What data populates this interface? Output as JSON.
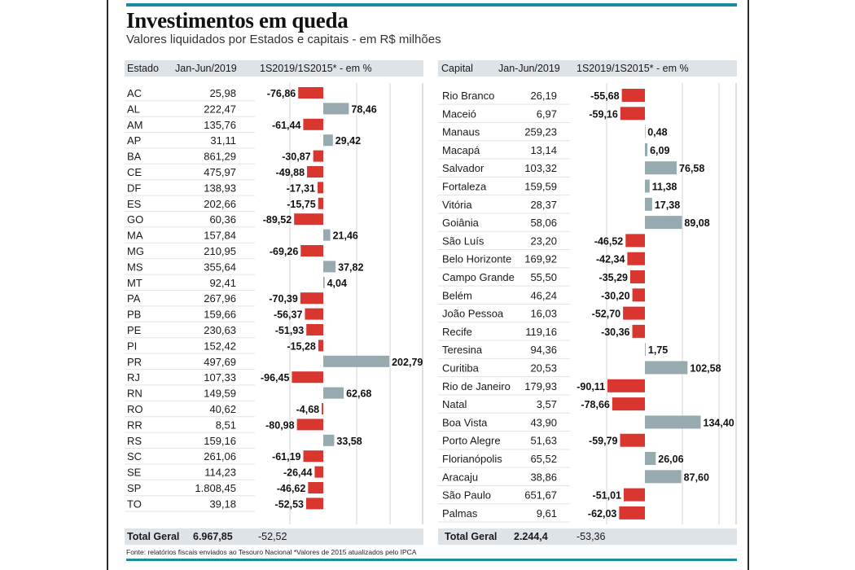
{
  "title": "Investimentos em queda",
  "subtitle": "Valores liquidados por Estados e capitais - em R$ milhões",
  "footer": "Fonte: relatórios fiscais enviados ao Tesouro Nacional *Valores de 2015 atualizados pelo IPCA",
  "colors": {
    "accent": "#1c8aa0",
    "negative": "#d93630",
    "positive": "#97aab0",
    "header_bg": "#dde3e6"
  },
  "chart_data": [
    {
      "type": "bar",
      "orientation": "horizontal",
      "columns": [
        "Estado",
        "Jan-Jun/2019",
        "1S2019/1S2015* - em %"
      ],
      "categories": [
        "AC",
        "AL",
        "AM",
        "AP",
        "BA",
        "CE",
        "DF",
        "ES",
        "GO",
        "MA",
        "MG",
        "MS",
        "MT",
        "PA",
        "PB",
        "PE",
        "PI",
        "PR",
        "RJ",
        "RN",
        "RO",
        "RR",
        "RS",
        "SC",
        "SE",
        "SP",
        "TO"
      ],
      "values_jan_jun_2019": [
        "25,98",
        "222,47",
        "135,76",
        "31,11",
        "861,29",
        "475,97",
        "138,93",
        "202,66",
        "60,36",
        "157,84",
        "210,95",
        "355,64",
        "92,41",
        "267,96",
        "159,66",
        "230,63",
        "152,42",
        "497,69",
        "107,33",
        "149,59",
        "40,62",
        "8,51",
        "159,16",
        "261,06",
        "114,23",
        "1.808,45",
        "39,18"
      ],
      "labels_pct": [
        "-76,86",
        "78,46",
        "-61,44",
        "29,42",
        "-30,87",
        "-49,88",
        "-17,31",
        "-15,75",
        "-89,52",
        "21,46",
        "-69,26",
        "37,82",
        "4,04",
        "-70,39",
        "-56,37",
        "-51,93",
        "-15,28",
        "202,79",
        "-96,45",
        "62,68",
        "-4,68",
        "-80,98",
        "33,58",
        "-61,19",
        "-26,44",
        "-46,62",
        "-52,53"
      ],
      "values": [
        -76.86,
        78.46,
        -61.44,
        29.42,
        -30.87,
        -49.88,
        -17.31,
        -15.75,
        -89.52,
        21.46,
        -69.26,
        37.82,
        4.04,
        -70.39,
        -56.37,
        -51.93,
        -15.28,
        202.79,
        -96.45,
        62.68,
        -4.68,
        -80.98,
        33.58,
        -61.19,
        -26.44,
        -46.62,
        -52.53
      ],
      "total": {
        "label": "Total Geral",
        "value": "6.967,85",
        "pct": "-52,52"
      }
    },
    {
      "type": "bar",
      "orientation": "horizontal",
      "columns": [
        "Capital",
        "Jan-Jun/2019",
        "1S2019/1S2015* - em %"
      ],
      "categories": [
        "Rio Branco",
        "Maceió",
        "Manaus",
        "Macapá",
        "Salvador",
        "Fortaleza",
        "Vitória",
        "Goiânia",
        "São Luís",
        "Belo Horizonte",
        "Campo Grande",
        "Belém",
        "João Pessoa",
        "Recife",
        "Teresina",
        "Curitiba",
        "Rio de Janeiro",
        "Natal",
        "Boa Vista",
        "Porto Alegre",
        "Florianópolis",
        "Aracaju",
        "São Paulo",
        "Palmas"
      ],
      "values_jan_jun_2019": [
        "26,19",
        "6,97",
        "259,23",
        "13,14",
        "103,32",
        "159,59",
        "28,37",
        "58,06",
        "23,20",
        "169,92",
        "55,50",
        "46,24",
        "16,03",
        "119,16",
        "94,36",
        "20,53",
        "179,93",
        "3,57",
        "43,90",
        "51,63",
        "65,52",
        "38,86",
        "651,67",
        "9,61"
      ],
      "labels_pct": [
        "-55,68",
        "-59,16",
        "0,48",
        "6,09",
        "76,58",
        "11,38",
        "17,38",
        "89,08",
        "-46,52",
        "-42,34",
        "-35,29",
        "-30,20",
        "-52,70",
        "-30,36",
        "1,75",
        "102,58",
        "-90,11",
        "-78,66",
        "134,40",
        "-59,79",
        "26,06",
        "87,60",
        "-51,01",
        "-62,03"
      ],
      "values": [
        -55.68,
        -59.16,
        0.48,
        6.09,
        76.58,
        11.38,
        17.38,
        89.08,
        -46.52,
        -42.34,
        -35.29,
        -30.2,
        -52.7,
        -30.36,
        1.75,
        102.58,
        -90.11,
        -78.66,
        134.4,
        -59.79,
        26.06,
        87.6,
        -51.01,
        -62.03
      ],
      "total": {
        "label": "Total Geral",
        "value": "2.244,4",
        "pct": "-53,36"
      }
    }
  ]
}
